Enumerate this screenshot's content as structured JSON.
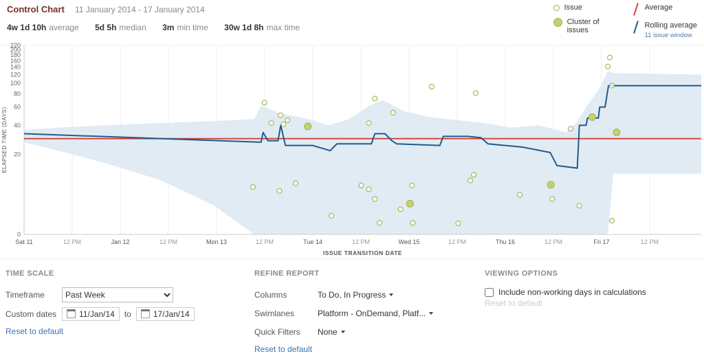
{
  "header": {
    "title": "Control Chart",
    "date_range": "11 January 2014 - 17 January 2014",
    "stats": [
      {
        "value": "4w 1d 10h",
        "label": "average"
      },
      {
        "value": "5d 5h",
        "label": "median"
      },
      {
        "value": "3m",
        "label": "min time"
      },
      {
        "value": "30w 1d 8h",
        "label": "max time"
      }
    ]
  },
  "legend": {
    "issue": "Issue",
    "cluster": "Cluster of issues",
    "average": "Average",
    "rolling": "Rolling average",
    "rolling_sub": "11 issue window"
  },
  "chart_data": {
    "type": "scatter",
    "title": "Control Chart",
    "xlabel": "ISSUE TRANSITION DATE",
    "ylabel": "ELAPSED TIME (DAYS)",
    "x_ticks": [
      "Sat 11",
      "12 PM",
      "Jan 12",
      "12 PM",
      "Mon 13",
      "12 PM",
      "Tue 14",
      "12 PM",
      "Wed 15",
      "12 PM",
      "Thu 16",
      "12 PM",
      "Fri 17",
      "12 PM"
    ],
    "y_ticks": [
      220,
      200,
      180,
      160,
      140,
      120,
      100,
      80,
      60,
      40,
      20,
      0
    ],
    "y_scale": "log-like",
    "grid": "vertical",
    "average_days": 29.4,
    "rolling_average": [
      [
        0,
        33
      ],
      [
        0.35,
        27
      ],
      [
        0.353,
        34
      ],
      [
        0.36,
        28
      ],
      [
        0.375,
        28
      ],
      [
        0.379,
        40
      ],
      [
        0.386,
        25
      ],
      [
        0.426,
        25
      ],
      [
        0.452,
        22
      ],
      [
        0.462,
        26
      ],
      [
        0.513,
        26
      ],
      [
        0.518,
        33
      ],
      [
        0.533,
        33
      ],
      [
        0.543,
        28
      ],
      [
        0.55,
        26
      ],
      [
        0.614,
        25
      ],
      [
        0.619,
        31
      ],
      [
        0.655,
        31
      ],
      [
        0.675,
        30
      ],
      [
        0.685,
        26
      ],
      [
        0.736,
        24
      ],
      [
        0.777,
        21
      ],
      [
        0.787,
        15
      ],
      [
        0.817,
        14
      ],
      [
        0.82,
        40
      ],
      [
        0.83,
        40
      ],
      [
        0.832,
        47
      ],
      [
        0.848,
        47
      ],
      [
        0.85,
        60
      ],
      [
        0.858,
        60
      ],
      [
        0.863,
        95
      ],
      [
        1,
        95
      ]
    ],
    "band": [
      [
        0,
        36,
        27
      ],
      [
        0.05,
        38,
        22
      ],
      [
        0.12,
        40,
        16
      ],
      [
        0.2,
        42,
        10
      ],
      [
        0.28,
        44,
        4
      ],
      [
        0.34,
        46,
        0
      ],
      [
        0.35,
        62,
        0
      ],
      [
        0.38,
        52,
        0
      ],
      [
        0.42,
        46,
        0
      ],
      [
        0.45,
        40,
        0
      ],
      [
        0.48,
        46,
        0
      ],
      [
        0.51,
        62,
        0
      ],
      [
        0.53,
        70,
        0
      ],
      [
        0.56,
        55,
        0
      ],
      [
        0.6,
        48,
        0
      ],
      [
        0.64,
        45,
        0
      ],
      [
        0.68,
        42,
        0
      ],
      [
        0.72,
        38,
        0
      ],
      [
        0.76,
        40,
        0
      ],
      [
        0.8,
        34,
        0
      ],
      [
        0.815,
        42,
        0
      ],
      [
        0.83,
        60,
        0
      ],
      [
        0.85,
        90,
        0
      ],
      [
        0.862,
        130,
        0
      ],
      [
        0.87,
        124,
        12
      ],
      [
        1,
        120,
        12
      ]
    ],
    "issues": [
      [
        0.355,
        66,
        0
      ],
      [
        0.365,
        42,
        0
      ],
      [
        0.379,
        50,
        0
      ],
      [
        0.383,
        41,
        0
      ],
      [
        0.389,
        45,
        0
      ],
      [
        0.419,
        39,
        1
      ],
      [
        0.509,
        42,
        0
      ],
      [
        0.518,
        72,
        0
      ],
      [
        0.545,
        53,
        0
      ],
      [
        0.602,
        93,
        0
      ],
      [
        0.667,
        81,
        0
      ],
      [
        0.865,
        171,
        0
      ],
      [
        0.862,
        142,
        0
      ],
      [
        0.868,
        95,
        0
      ],
      [
        0.839,
        48,
        1
      ],
      [
        0.807,
        37,
        0
      ],
      [
        0.875,
        34,
        1
      ],
      [
        0.338,
        8,
        0
      ],
      [
        0.377,
        7,
        0
      ],
      [
        0.401,
        9,
        0
      ],
      [
        0.454,
        2.3,
        0
      ],
      [
        0.498,
        8.4,
        0
      ],
      [
        0.509,
        7.4,
        0
      ],
      [
        0.518,
        5.2,
        0
      ],
      [
        0.525,
        1.3,
        0
      ],
      [
        0.556,
        3.3,
        0
      ],
      [
        0.57,
        4.3,
        1
      ],
      [
        0.573,
        8.4,
        0
      ],
      [
        0.574,
        1.3,
        0
      ],
      [
        0.641,
        1.25,
        0
      ],
      [
        0.659,
        9.8,
        0
      ],
      [
        0.664,
        11.6,
        0
      ],
      [
        0.732,
        6.1,
        0
      ],
      [
        0.778,
        8.6,
        1
      ],
      [
        0.78,
        5.2,
        0
      ],
      [
        0.82,
        3.9,
        0
      ],
      [
        0.868,
        1.6,
        0
      ]
    ],
    "colors": {
      "band": "#dce7f2",
      "average": "#cf4236",
      "rolling": "#1f5c8b",
      "issue_stroke": "#99ae3d",
      "cluster_fill": "#c3d26e",
      "cluster_stroke": "#a2b44c",
      "grid": "#ededed",
      "axis": "#cccccc",
      "tick_day": "#555555",
      "tick_half": "#999999"
    }
  },
  "panels": {
    "time_scale": {
      "title": "TIME SCALE",
      "timeframe_label": "Timeframe",
      "timeframe_value": "Past Week",
      "custom_dates_label": "Custom dates",
      "date_from": "11/Jan/14",
      "to_word": "to",
      "date_to": "17/Jan/14",
      "reset_label": "Reset to default"
    },
    "refine_report": {
      "title": "REFINE REPORT",
      "rows": [
        {
          "label": "Columns",
          "value": "To Do, In Progress"
        },
        {
          "label": "Swimlanes",
          "value": "Platform - OnDemand, Platf..."
        },
        {
          "label": "Quick Filters",
          "value": "None"
        }
      ],
      "reset_label": "Reset to default"
    },
    "viewing_options": {
      "title": "VIEWING OPTIONS",
      "checkbox_label": "Include non-working days in calculations",
      "checkbox_checked": false,
      "reset_label": "Reset to default"
    }
  }
}
